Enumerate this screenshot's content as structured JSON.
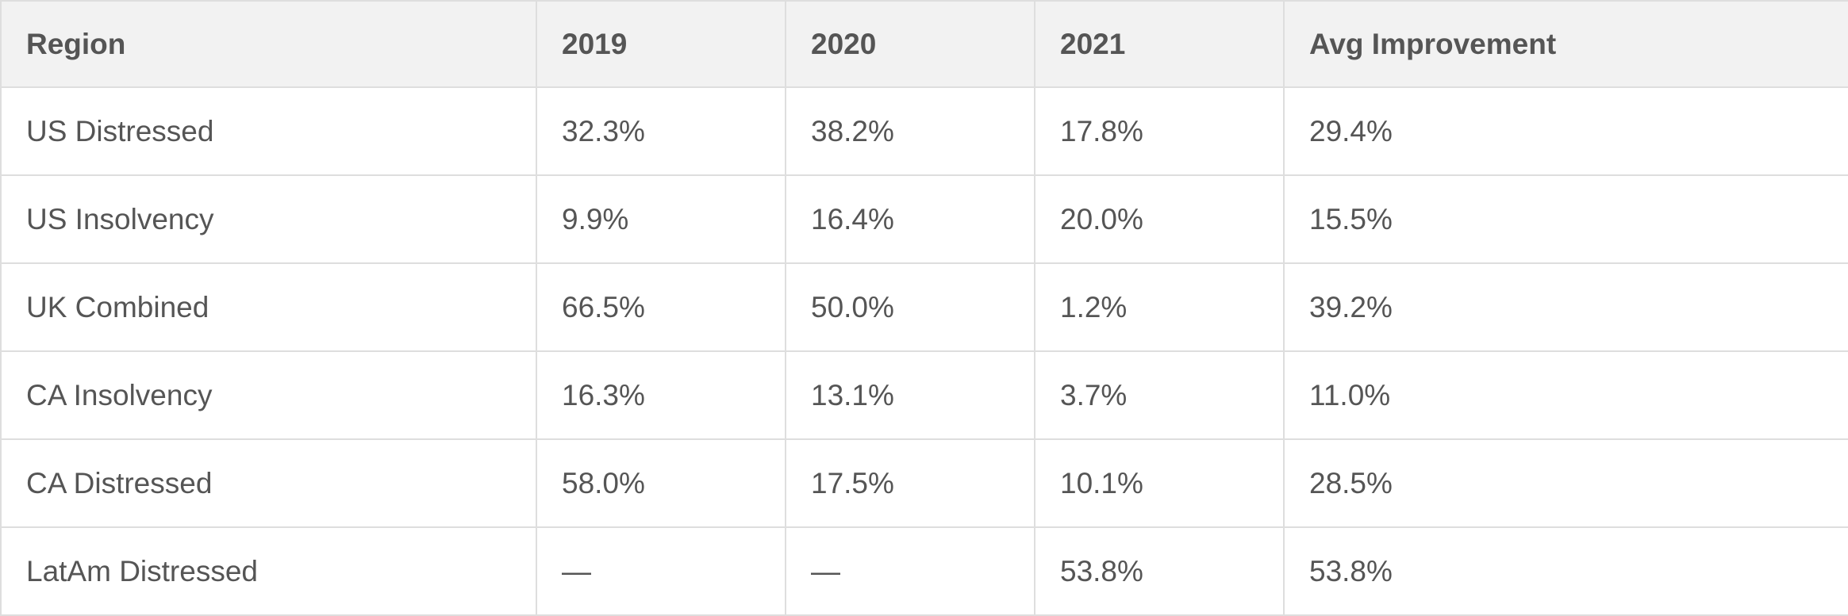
{
  "table": {
    "headers": [
      "Region",
      "2019",
      "2020",
      "2021",
      "Avg Improvement"
    ],
    "rows": [
      [
        "US Distressed",
        "32.3%",
        "38.2%",
        "17.8%",
        "29.4%"
      ],
      [
        "US Insolvency",
        "9.9%",
        "16.4%",
        "20.0%",
        "15.5%"
      ],
      [
        "UK Combined",
        "66.5%",
        "50.0%",
        "1.2%",
        "39.2%"
      ],
      [
        "CA Insolvency",
        "16.3%",
        "13.1%",
        "3.7%",
        "11.0%"
      ],
      [
        "CA Distressed",
        "58.0%",
        "17.5%",
        "10.1%",
        "28.5%"
      ],
      [
        "LatAm Distressed",
        "—",
        "—",
        "53.8%",
        "53.8%"
      ]
    ]
  }
}
